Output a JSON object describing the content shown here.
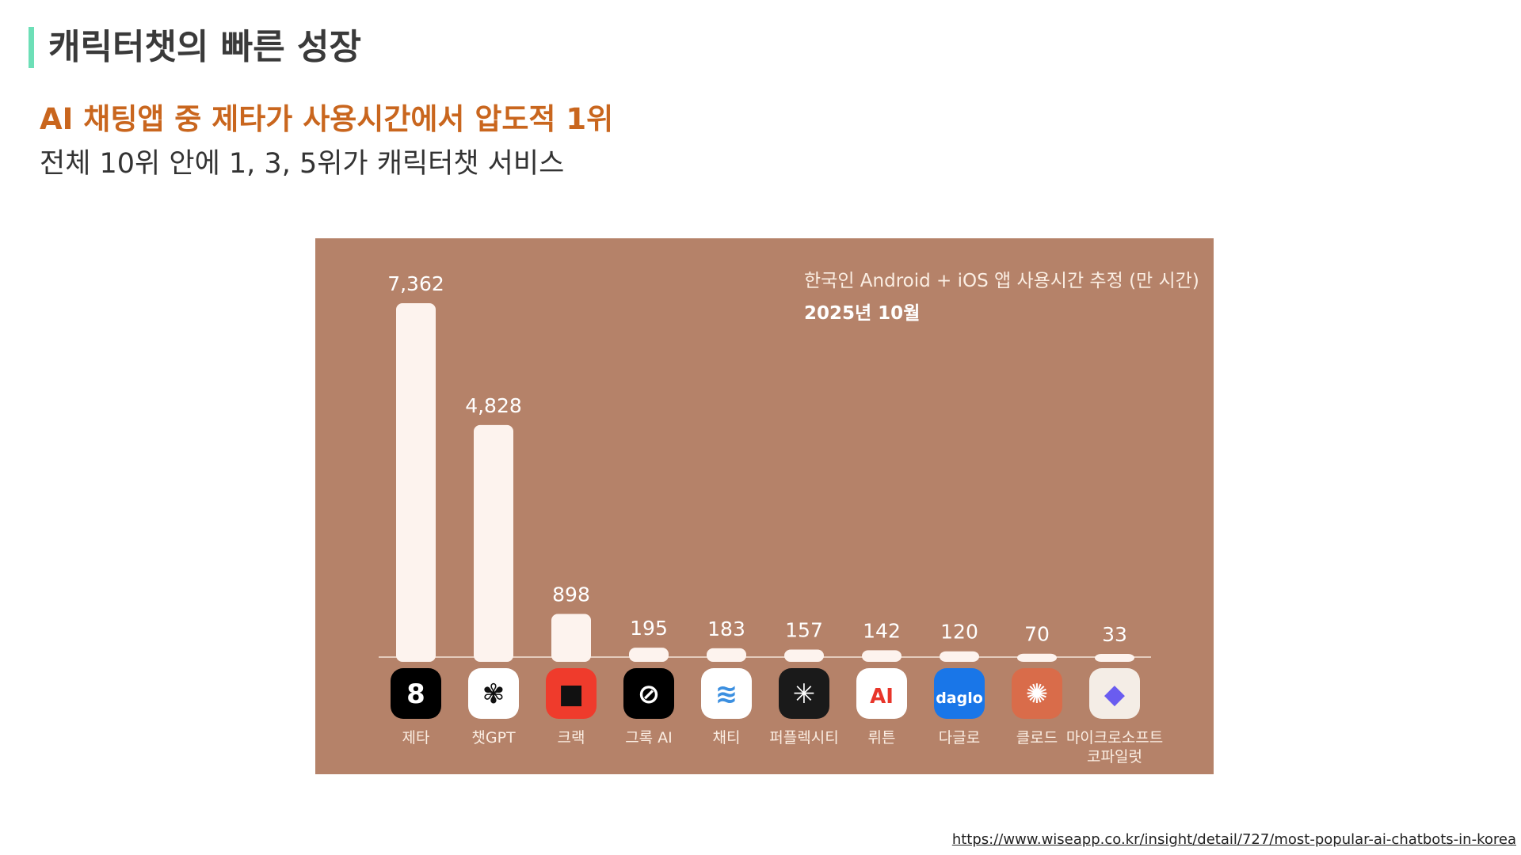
{
  "header": {
    "title": "캐릭터챗의 빠른 성장"
  },
  "subtitle": {
    "accent": "AI 채팅앱 중 제타가 사용시간에서 압도적 1위",
    "plain": "전체 10위 안에 1, 3, 5위가 캐릭터챗 서비스"
  },
  "chart_data": {
    "type": "bar",
    "title": "한국인 Android + iOS 앱 사용시간 추정 (만 시간)",
    "subtitle": "2025년 10월",
    "categories": [
      "제타",
      "챗GPT",
      "크랙",
      "그록 AI",
      "채티",
      "퍼플렉시티",
      "뤼튼",
      "다글로",
      "클로드",
      "마이크로소프트\n코파일럿"
    ],
    "values": [
      7362,
      4828,
      898,
      195,
      183,
      157,
      142,
      120,
      70,
      33
    ],
    "value_labels": [
      "7,362",
      "4,828",
      "898",
      "195",
      "183",
      "157",
      "142",
      "120",
      "70",
      "33"
    ],
    "icons": [
      {
        "name": "zeta-icon",
        "bg": "#000000",
        "glyph": "8",
        "fg": "#ffffff"
      },
      {
        "name": "chatgpt-icon",
        "bg": "#ffffff",
        "glyph": "✾",
        "fg": "#111111"
      },
      {
        "name": "crack-icon",
        "bg": "#ef3b2c",
        "glyph": "■",
        "fg": "#111111"
      },
      {
        "name": "grok-icon",
        "bg": "#000000",
        "glyph": "⊘",
        "fg": "#ffffff"
      },
      {
        "name": "chatty-icon",
        "bg": "#ffffff",
        "glyph": "≋",
        "fg": "#3b8fe0"
      },
      {
        "name": "perplexity-icon",
        "bg": "#1a1a1a",
        "glyph": "✳",
        "fg": "#ffffff"
      },
      {
        "name": "wrtn-icon",
        "bg": "#ffffff",
        "glyph": "AI",
        "fg": "#e8352a"
      },
      {
        "name": "daglo-icon",
        "bg": "#1976e8",
        "glyph": "daglo",
        "fg": "#ffffff"
      },
      {
        "name": "claude-icon",
        "bg": "#d96c4a",
        "glyph": "✺",
        "fg": "#ffffff"
      },
      {
        "name": "copilot-icon",
        "bg": "#f4ede6",
        "glyph": "◆",
        "fg": "#6a5cf0"
      }
    ],
    "bar_color": "#fdf3ee",
    "ylim": [
      0,
      7362
    ]
  },
  "source": {
    "url": "https://www.wiseapp.co.kr/insight/detail/727/most-popular-ai-chatbots-in-korea"
  }
}
